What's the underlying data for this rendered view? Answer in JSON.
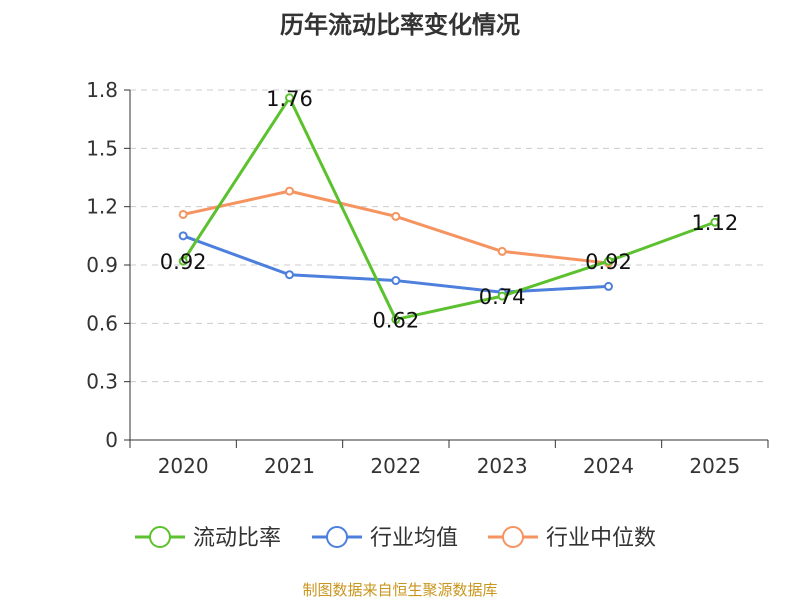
{
  "chart_data": {
    "type": "line",
    "title": "历年流动比率变化情况",
    "categories": [
      "2020",
      "2021",
      "2022",
      "2023",
      "2024",
      "2025"
    ],
    "ylim": [
      0,
      1.8
    ],
    "yticks": [
      "0",
      "0.3",
      "0.6",
      "0.9",
      "1.2",
      "1.5",
      "1.8"
    ],
    "grid": true,
    "legend_position": "bottom",
    "series": [
      {
        "name": "流动比率",
        "color": "#5cc12e",
        "values": [
          0.92,
          1.76,
          0.62,
          0.74,
          0.92,
          1.12
        ],
        "labels": [
          "0.92",
          "1.76",
          "0.62",
          "0.74",
          "0.92",
          "1.12"
        ]
      },
      {
        "name": "行业均值",
        "color": "#4d7fdc",
        "values": [
          1.05,
          0.85,
          0.82,
          0.76,
          0.79,
          null
        ]
      },
      {
        "name": "行业中位数",
        "color": "#f59460",
        "values": [
          1.16,
          1.28,
          1.15,
          0.97,
          0.91,
          null
        ]
      }
    ],
    "source": "制图数据来自恒生聚源数据库"
  }
}
